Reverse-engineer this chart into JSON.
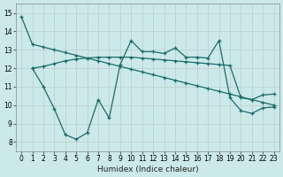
{
  "xlabel": "Humidex (Indice chaleur)",
  "bg_color": "#cce9e9",
  "grid_color": "#aacccc",
  "line_color": "#1a6b6b",
  "xlim": [
    -0.5,
    23.5
  ],
  "ylim": [
    7.5,
    15.5
  ],
  "yticks": [
    8,
    9,
    10,
    11,
    12,
    13,
    14,
    15
  ],
  "xticks": [
    0,
    1,
    2,
    3,
    4,
    5,
    6,
    7,
    8,
    9,
    10,
    11,
    12,
    13,
    14,
    15,
    16,
    17,
    18,
    19,
    20,
    21,
    22,
    23
  ],
  "line1_x": [
    0,
    1,
    2,
    3,
    4,
    5,
    6,
    7,
    8,
    9,
    10,
    11,
    12,
    13,
    14,
    15,
    16,
    17,
    18,
    19,
    20,
    21,
    22,
    23
  ],
  "line1_y": [
    14.8,
    13.3,
    13.15,
    13.0,
    12.85,
    12.7,
    12.55,
    12.4,
    12.25,
    12.1,
    11.95,
    11.8,
    11.65,
    11.5,
    11.35,
    11.2,
    11.05,
    10.9,
    10.75,
    10.6,
    10.45,
    10.3,
    10.15,
    10.0
  ],
  "line2_x": [
    1,
    2,
    3,
    4,
    5,
    6,
    7,
    8,
    9,
    10,
    11,
    12,
    13,
    14,
    15,
    16,
    17,
    18,
    19,
    20,
    21,
    22,
    23
  ],
  "line2_y": [
    12.0,
    11.0,
    9.8,
    8.4,
    8.15,
    8.5,
    10.3,
    9.3,
    12.2,
    13.5,
    12.9,
    12.9,
    12.8,
    13.1,
    12.6,
    12.6,
    12.55,
    13.5,
    10.4,
    9.7,
    9.55,
    9.85,
    9.9
  ],
  "line3_x": [
    1,
    2,
    3,
    4,
    5,
    6,
    7,
    8,
    9,
    10,
    11,
    12,
    13,
    14,
    15,
    16,
    17,
    18,
    19,
    20,
    21,
    22,
    23
  ],
  "line3_y": [
    12.0,
    12.1,
    12.25,
    12.4,
    12.5,
    12.55,
    12.6,
    12.6,
    12.6,
    12.6,
    12.55,
    12.5,
    12.45,
    12.4,
    12.35,
    12.3,
    12.25,
    12.2,
    12.15,
    10.4,
    10.3,
    10.55,
    10.6
  ]
}
